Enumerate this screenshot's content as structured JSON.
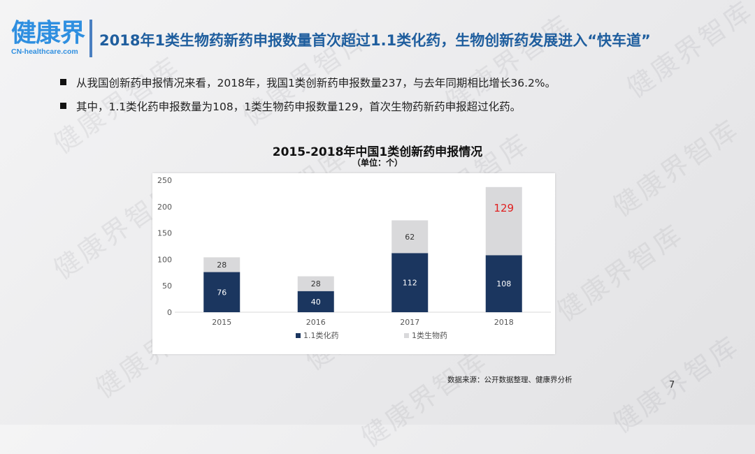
{
  "watermark": "健康界智库",
  "logo": {
    "cn": "健康界",
    "en": "CN-healthcare.com"
  },
  "title": "2018年1类生物药新药申报数量首次超过1.1类化药，生物创新药发展进入“快车道”",
  "bullets": [
    "从我国创新药申报情况来看，2018年，我国1类创新药申报数量237，与去年同期相比增长36.2%。",
    "其中，1.1类化药申报数量为108，1类生物药申报数量129，首次生物药新药申报超过化药。"
  ],
  "chart_data": {
    "type": "bar",
    "stacked": true,
    "title": "2015-2018年中国1类创新药申报情况",
    "subtitle": "（单位：个）",
    "categories": [
      "2015",
      "2016",
      "2017",
      "2018"
    ],
    "series": [
      {
        "name": "1.1类化药",
        "values": [
          76,
          40,
          112,
          108
        ],
        "color": "#1b365f",
        "label_color": "#ffffff"
      },
      {
        "name": "1类生物药",
        "values": [
          28,
          28,
          62,
          129
        ],
        "color": "#d9d9db",
        "label_color": "#333333"
      }
    ],
    "highlight_label": {
      "category": "2018",
      "series": "1类生物药",
      "color": "#e02020"
    },
    "yticks": [
      0,
      50,
      100,
      150,
      200,
      250
    ],
    "ylim": [
      0,
      250
    ],
    "legend": "bottom",
    "grid": false
  },
  "source": "数据来源：公开数据整理、健康界分析",
  "page_number": "7"
}
